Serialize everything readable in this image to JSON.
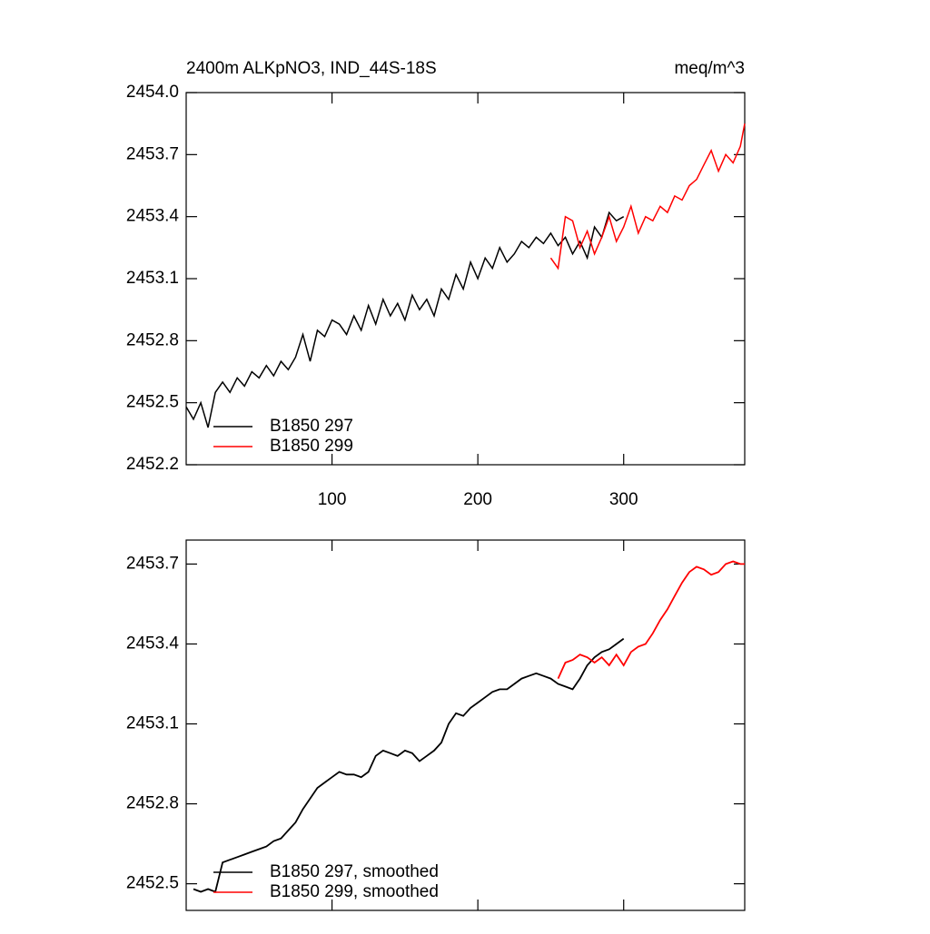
{
  "chart_data": [
    {
      "type": "line",
      "title": "2400m ALKpNO3, IND_44S-18S",
      "units": "meq/m^3",
      "x": [
        0,
        5,
        10,
        15,
        20,
        25,
        30,
        35,
        40,
        45,
        50,
        55,
        60,
        65,
        70,
        75,
        80,
        85,
        90,
        95,
        100,
        105,
        110,
        115,
        120,
        125,
        130,
        135,
        140,
        145,
        150,
        155,
        160,
        165,
        170,
        175,
        180,
        185,
        190,
        195,
        200,
        205,
        210,
        215,
        220,
        225,
        230,
        235,
        240,
        245,
        250,
        255,
        260,
        265,
        270,
        275,
        280,
        285,
        290,
        295,
        300,
        305,
        310,
        315,
        320,
        325,
        330,
        335,
        340,
        345,
        350,
        355,
        360,
        365,
        370,
        375,
        380,
        383
      ],
      "series": [
        {
          "name": "B1850 297",
          "color": "#000000",
          "values": [
            2452.48,
            2452.42,
            2452.5,
            2452.38,
            2452.55,
            2452.6,
            2452.55,
            2452.62,
            2452.58,
            2452.65,
            2452.62,
            2452.68,
            2452.63,
            2452.7,
            2452.66,
            2452.72,
            2452.83,
            2452.7,
            2452.85,
            2452.82,
            2452.9,
            2452.88,
            2452.83,
            2452.92,
            2452.85,
            2452.97,
            2452.88,
            2453.0,
            2452.92,
            2452.98,
            2452.9,
            2453.02,
            2452.95,
            2453.0,
            2452.92,
            2453.05,
            2453.0,
            2453.12,
            2453.05,
            2453.18,
            2453.1,
            2453.2,
            2453.15,
            2453.25,
            2453.18,
            2453.22,
            2453.28,
            2453.25,
            2453.3,
            2453.27,
            2453.32,
            2453.26,
            2453.3,
            2453.22,
            2453.28,
            2453.2,
            2453.35,
            2453.3,
            2453.42,
            2453.38,
            2453.4,
            null,
            null,
            null,
            null,
            null,
            null,
            null,
            null,
            null,
            null,
            null,
            null,
            null,
            null,
            null,
            null,
            null
          ]
        },
        {
          "name": "B1850 299",
          "color": "#ff0000",
          "values": [
            null,
            null,
            null,
            null,
            null,
            null,
            null,
            null,
            null,
            null,
            null,
            null,
            null,
            null,
            null,
            null,
            null,
            null,
            null,
            null,
            null,
            null,
            null,
            null,
            null,
            null,
            null,
            null,
            null,
            null,
            null,
            null,
            null,
            null,
            null,
            null,
            null,
            null,
            null,
            null,
            null,
            null,
            null,
            null,
            null,
            null,
            null,
            null,
            null,
            null,
            2453.2,
            2453.15,
            2453.4,
            2453.38,
            2453.25,
            2453.33,
            2453.22,
            2453.3,
            2453.4,
            2453.28,
            2453.35,
            2453.45,
            2453.32,
            2453.4,
            2453.38,
            2453.45,
            2453.42,
            2453.5,
            2453.48,
            2453.55,
            2453.58,
            2453.65,
            2453.72,
            2453.62,
            2453.7,
            2453.66,
            2453.74,
            2453.85
          ]
        }
      ],
      "xlim": [
        0,
        383
      ],
      "xticks": [
        100,
        200,
        300
      ],
      "ylim": [
        2452.2,
        2454.0
      ],
      "yticks": [
        {
          "value": 2452.2,
          "label": "2452.2"
        },
        2452.5,
        2452.8,
        2453.1,
        2453.4,
        2453.7,
        {
          "value": 2454.0,
          "label": "2454.0"
        }
      ],
      "legend": "lower left"
    },
    {
      "type": "line",
      "x": [
        0,
        5,
        10,
        15,
        20,
        25,
        30,
        35,
        40,
        45,
        50,
        55,
        60,
        65,
        70,
        75,
        80,
        85,
        90,
        95,
        100,
        105,
        110,
        115,
        120,
        125,
        130,
        135,
        140,
        145,
        150,
        155,
        160,
        165,
        170,
        175,
        180,
        185,
        190,
        195,
        200,
        205,
        210,
        215,
        220,
        225,
        230,
        235,
        240,
        245,
        250,
        255,
        260,
        265,
        270,
        275,
        280,
        285,
        290,
        295,
        300,
        305,
        310,
        315,
        320,
        325,
        330,
        335,
        340,
        345,
        350,
        355,
        360,
        365,
        370,
        375,
        380,
        383
      ],
      "series": [
        {
          "name": "B1850 297, smoothed",
          "color": "#000000",
          "values": [
            null,
            2452.48,
            2452.47,
            2452.48,
            2452.47,
            2452.58,
            2452.59,
            2452.6,
            2452.61,
            2452.62,
            2452.63,
            2452.64,
            2452.66,
            2452.67,
            2452.7,
            2452.73,
            2452.78,
            2452.82,
            2452.86,
            2452.88,
            2452.9,
            2452.92,
            2452.91,
            2452.91,
            2452.9,
            2452.92,
            2452.98,
            2453.0,
            2452.99,
            2452.98,
            2453.0,
            2452.99,
            2452.96,
            2452.98,
            2453.0,
            2453.03,
            2453.1,
            2453.14,
            2453.13,
            2453.16,
            2453.18,
            2453.2,
            2453.22,
            2453.23,
            2453.23,
            2453.25,
            2453.27,
            2453.28,
            2453.29,
            2453.28,
            2453.27,
            2453.25,
            2453.24,
            2453.23,
            2453.27,
            2453.32,
            2453.35,
            2453.37,
            2453.38,
            2453.4,
            2453.42,
            null,
            null,
            null,
            null,
            null,
            null,
            null,
            null,
            null,
            null,
            null,
            null,
            null,
            null,
            null,
            null,
            null
          ]
        },
        {
          "name": "B1850 299, smoothed",
          "color": "#ff0000",
          "values": [
            null,
            null,
            null,
            null,
            null,
            null,
            null,
            null,
            null,
            null,
            null,
            null,
            null,
            null,
            null,
            null,
            null,
            null,
            null,
            null,
            null,
            null,
            null,
            null,
            null,
            null,
            null,
            null,
            null,
            null,
            null,
            null,
            null,
            null,
            null,
            null,
            null,
            null,
            null,
            null,
            null,
            null,
            null,
            null,
            null,
            null,
            null,
            null,
            null,
            null,
            null,
            2453.27,
            2453.33,
            2453.34,
            2453.36,
            2453.35,
            2453.33,
            2453.35,
            2453.32,
            2453.36,
            2453.32,
            2453.37,
            2453.39,
            2453.4,
            2453.44,
            2453.49,
            2453.53,
            2453.58,
            2453.63,
            2453.67,
            2453.69,
            2453.68,
            2453.66,
            2453.67,
            2453.7,
            2453.71,
            2453.7,
            2453.7
          ]
        }
      ],
      "xlim": [
        0,
        383
      ],
      "ylim": [
        2452.4,
        2453.79
      ],
      "yticks": [
        2452.5,
        2452.8,
        2453.1,
        2453.4,
        2453.7
      ],
      "legend": "lower left"
    }
  ]
}
